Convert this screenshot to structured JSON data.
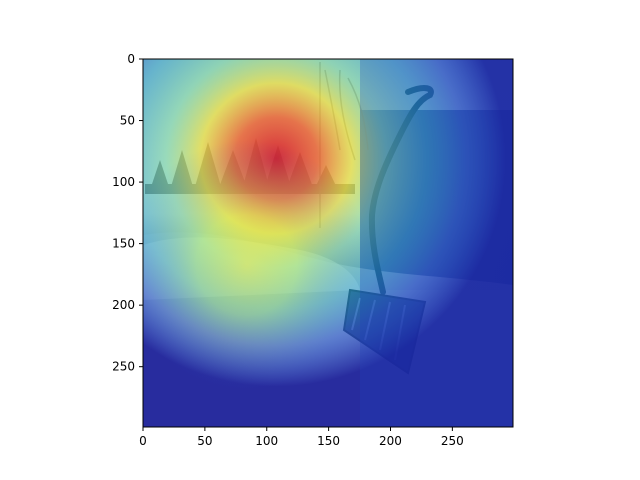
{
  "chart_data": {
    "type": "heatmap",
    "description_visible": "Image plot with heatmap overlay",
    "title": "",
    "xlabel": "",
    "ylabel": "",
    "xlim": [
      0,
      299
    ],
    "ylim": [
      299,
      0
    ],
    "x_ticks": [
      0,
      50,
      100,
      150,
      200,
      250
    ],
    "y_ticks": [
      0,
      50,
      100,
      150,
      200,
      250
    ],
    "grid": false,
    "legend": "none",
    "colormap": "jet",
    "heatmap_peak": {
      "x": 105,
      "y": 80,
      "value": 1.0
    },
    "secondary_warm_region": {
      "x": 110,
      "y": 170,
      "value": 0.55
    },
    "colors": {
      "peak": "#d71e2d",
      "hot": "#f3a21c",
      "warm": "#f5ea3d",
      "mid": "#61d6b8",
      "cool": "#1d67d7",
      "cold": "#1c1f9a"
    }
  }
}
